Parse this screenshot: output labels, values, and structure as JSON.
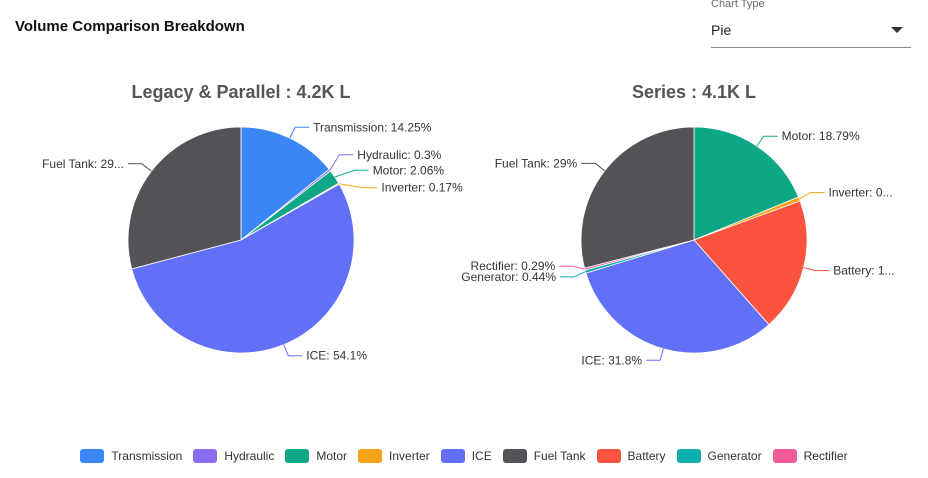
{
  "page": {
    "title": "Volume Comparison Breakdown"
  },
  "controls": {
    "chart_type_label": "Chart Type",
    "chart_type_value": "Pie"
  },
  "legend": [
    {
      "name": "Transmission",
      "color": "#3a86f5"
    },
    {
      "name": "Hydraulic",
      "color": "#8a6cf0"
    },
    {
      "name": "Motor",
      "color": "#0da687"
    },
    {
      "name": "Inverter",
      "color": "#f7a316"
    },
    {
      "name": "ICE",
      "color": "#6170f7"
    },
    {
      "name": "Fuel Tank",
      "color": "#555257"
    },
    {
      "name": "Battery",
      "color": "#fa5441"
    },
    {
      "name": "Generator",
      "color": "#0eaeae"
    },
    {
      "name": "Rectifier",
      "color": "#f65c9a"
    }
  ],
  "chart_data": [
    {
      "type": "pie",
      "title": "Legacy & Parallel : 4.2K L",
      "slices": [
        {
          "name": "Transmission",
          "value": 14.25,
          "label": "Transmission: 14.25%"
        },
        {
          "name": "Hydraulic",
          "value": 0.3,
          "label": "Hydraulic: 0.3%"
        },
        {
          "name": "Motor",
          "value": 2.06,
          "label": "Motor: 2.06%"
        },
        {
          "name": "Inverter",
          "value": 0.17,
          "label": "Inverter: 0.17%"
        },
        {
          "name": "ICE",
          "value": 54.1,
          "label": "ICE: 54.1%"
        },
        {
          "name": "Fuel Tank",
          "value": 29.12,
          "label": "Fuel Tank: 29..."
        }
      ]
    },
    {
      "type": "pie",
      "title": "Series : 4.1K L",
      "slices": [
        {
          "name": "Motor",
          "value": 18.79,
          "label": "Motor: 18.79%"
        },
        {
          "name": "Inverter",
          "value": 0.6,
          "label": "Inverter: 0..."
        },
        {
          "name": "Battery",
          "value": 19.08,
          "label": "Battery: 1..."
        },
        {
          "name": "ICE",
          "value": 31.8,
          "label": "ICE: 31.8%"
        },
        {
          "name": "Generator",
          "value": 0.44,
          "label": "Generator: 0.44%"
        },
        {
          "name": "Rectifier",
          "value": 0.29,
          "label": "Rectifier: 0.29%"
        },
        {
          "name": "Fuel Tank",
          "value": 29.0,
          "label": "Fuel Tank: 29%"
        }
      ]
    }
  ]
}
